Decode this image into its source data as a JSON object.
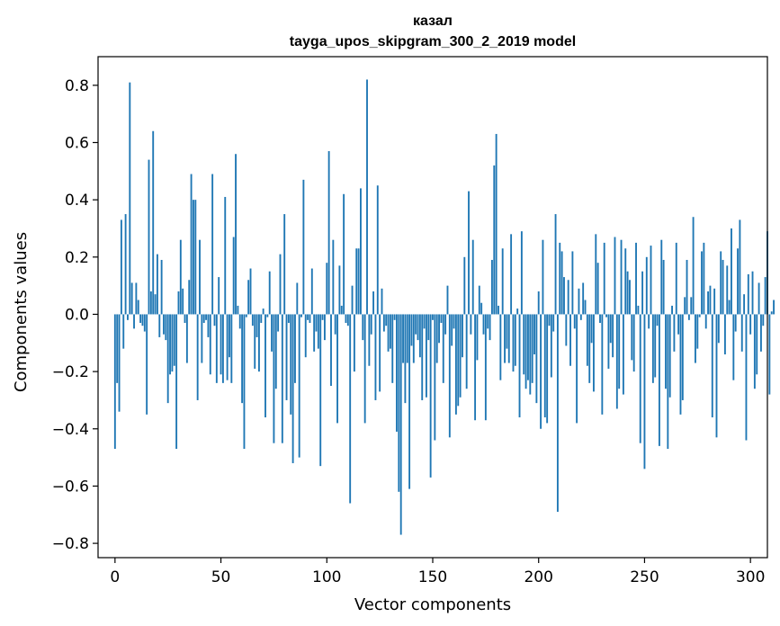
{
  "chart_data": {
    "type": "bar",
    "title": "казал",
    "subtitle": "tayga_upos_skipgram_300_2_2019 model",
    "xlabel": "Vector components",
    "ylabel": "Components values",
    "xlim": [
      -8,
      308
    ],
    "ylim": [
      -0.85,
      0.9
    ],
    "xticks": [
      0,
      50,
      100,
      150,
      200,
      250,
      300
    ],
    "xtick_labels": [
      "0",
      "50",
      "100",
      "150",
      "200",
      "250",
      "300"
    ],
    "yticks": [
      -0.8,
      -0.6,
      -0.4,
      -0.2,
      0.0,
      0.2,
      0.4,
      0.6,
      0.8
    ],
    "ytick_labels": [
      "−0.8",
      "−0.6",
      "−0.4",
      "−0.2",
      "0.0",
      "0.2",
      "0.4",
      "0.6",
      "0.8"
    ],
    "bar_color": "#1f77b4",
    "values": [
      -0.47,
      -0.24,
      -0.34,
      0.33,
      -0.12,
      0.35,
      -0.02,
      0.81,
      0.11,
      -0.05,
      0.11,
      0.05,
      -0.03,
      -0.04,
      -0.06,
      -0.35,
      0.54,
      0.08,
      0.64,
      0.07,
      0.21,
      -0.08,
      0.19,
      -0.07,
      -0.09,
      -0.31,
      -0.21,
      -0.2,
      -0.18,
      -0.47,
      0.08,
      0.26,
      0.09,
      -0.03,
      -0.17,
      0.12,
      0.49,
      0.4,
      0.4,
      -0.3,
      0.26,
      -0.17,
      -0.03,
      -0.02,
      -0.08,
      -0.21,
      0.49,
      -0.04,
      -0.24,
      0.13,
      -0.21,
      -0.24,
      0.41,
      -0.23,
      -0.15,
      -0.24,
      0.27,
      0.56,
      0.03,
      -0.05,
      -0.31,
      -0.47,
      -0.01,
      0.12,
      0.16,
      -0.04,
      -0.19,
      -0.08,
      -0.2,
      -0.03,
      0.02,
      -0.36,
      -0.01,
      0.15,
      -0.13,
      -0.45,
      -0.26,
      -0.06,
      0.21,
      -0.45,
      0.35,
      -0.3,
      -0.03,
      -0.35,
      -0.52,
      -0.24,
      0.11,
      -0.5,
      -0.01,
      0.47,
      -0.15,
      -0.02,
      -0.03,
      0.16,
      -0.13,
      -0.06,
      -0.12,
      -0.53,
      -0.02,
      -0.09,
      0.18,
      0.57,
      -0.25,
      0.26,
      -0.07,
      -0.38,
      0.17,
      0.03,
      0.42,
      -0.03,
      -0.04,
      -0.66,
      0.1,
      -0.2,
      0.23,
      0.23,
      0.44,
      -0.09,
      -0.38,
      0.82,
      -0.18,
      -0.07,
      0.08,
      -0.3,
      0.45,
      -0.27,
      0.09,
      -0.06,
      -0.04,
      -0.13,
      -0.12,
      -0.24,
      -0.02,
      -0.41,
      -0.62,
      -0.77,
      -0.17,
      -0.31,
      -0.17,
      -0.61,
      -0.11,
      -0.17,
      -0.07,
      -0.09,
      -0.15,
      -0.3,
      -0.05,
      -0.29,
      -0.09,
      -0.57,
      -0.02,
      -0.44,
      -0.17,
      -0.1,
      -0.03,
      -0.24,
      -0.07,
      0.1,
      -0.43,
      -0.11,
      -0.05,
      -0.35,
      -0.32,
      -0.29,
      -0.15,
      0.2,
      -0.26,
      0.43,
      -0.07,
      0.26,
      -0.37,
      -0.16,
      0.1,
      0.04,
      -0.07,
      -0.37,
      -0.05,
      -0.09,
      0.19,
      0.52,
      0.63,
      0.03,
      -0.23,
      0.23,
      -0.17,
      -0.12,
      -0.17,
      0.28,
      -0.2,
      -0.18,
      0.02,
      -0.36,
      0.29,
      -0.21,
      -0.26,
      -0.23,
      -0.28,
      -0.24,
      -0.14,
      -0.31,
      0.08,
      -0.4,
      0.26,
      -0.36,
      -0.38,
      -0.04,
      -0.22,
      -0.06,
      0.35,
      -0.69,
      0.25,
      0.22,
      0.13,
      -0.11,
      0.12,
      -0.18,
      0.22,
      -0.05,
      -0.38,
      0.09,
      -0.02,
      0.11,
      0.05,
      -0.18,
      -0.24,
      -0.1,
      -0.27,
      0.28,
      0.18,
      -0.03,
      -0.35,
      0.25,
      -0.01,
      -0.19,
      -0.1,
      -0.15,
      0.27,
      -0.33,
      -0.26,
      0.26,
      -0.28,
      0.23,
      0.15,
      0.12,
      -0.16,
      -0.2,
      0.25,
      0.03,
      -0.45,
      0.15,
      -0.54,
      0.2,
      -0.05,
      0.24,
      -0.24,
      -0.22,
      -0.04,
      -0.46,
      0.26,
      0.19,
      -0.26,
      -0.47,
      -0.29,
      0.03,
      -0.13,
      0.25,
      -0.07,
      -0.35,
      -0.3,
      0.06,
      0.19,
      -0.02,
      0.06,
      0.34,
      -0.17,
      -0.12,
      -0.01,
      0.22,
      0.25,
      -0.05,
      0.08,
      0.1,
      -0.36,
      0.09,
      -0.43,
      -0.1,
      0.22,
      0.19,
      -0.14,
      0.17,
      0.05,
      0.3,
      -0.23,
      -0.06,
      0.23,
      0.33,
      -0.13,
      0.07,
      -0.44,
      0.14,
      -0.07,
      0.15,
      -0.26,
      -0.21,
      0.11,
      -0.13,
      -0.04,
      0.13,
      0.29,
      -0.28,
      0.01,
      0.05
    ]
  }
}
